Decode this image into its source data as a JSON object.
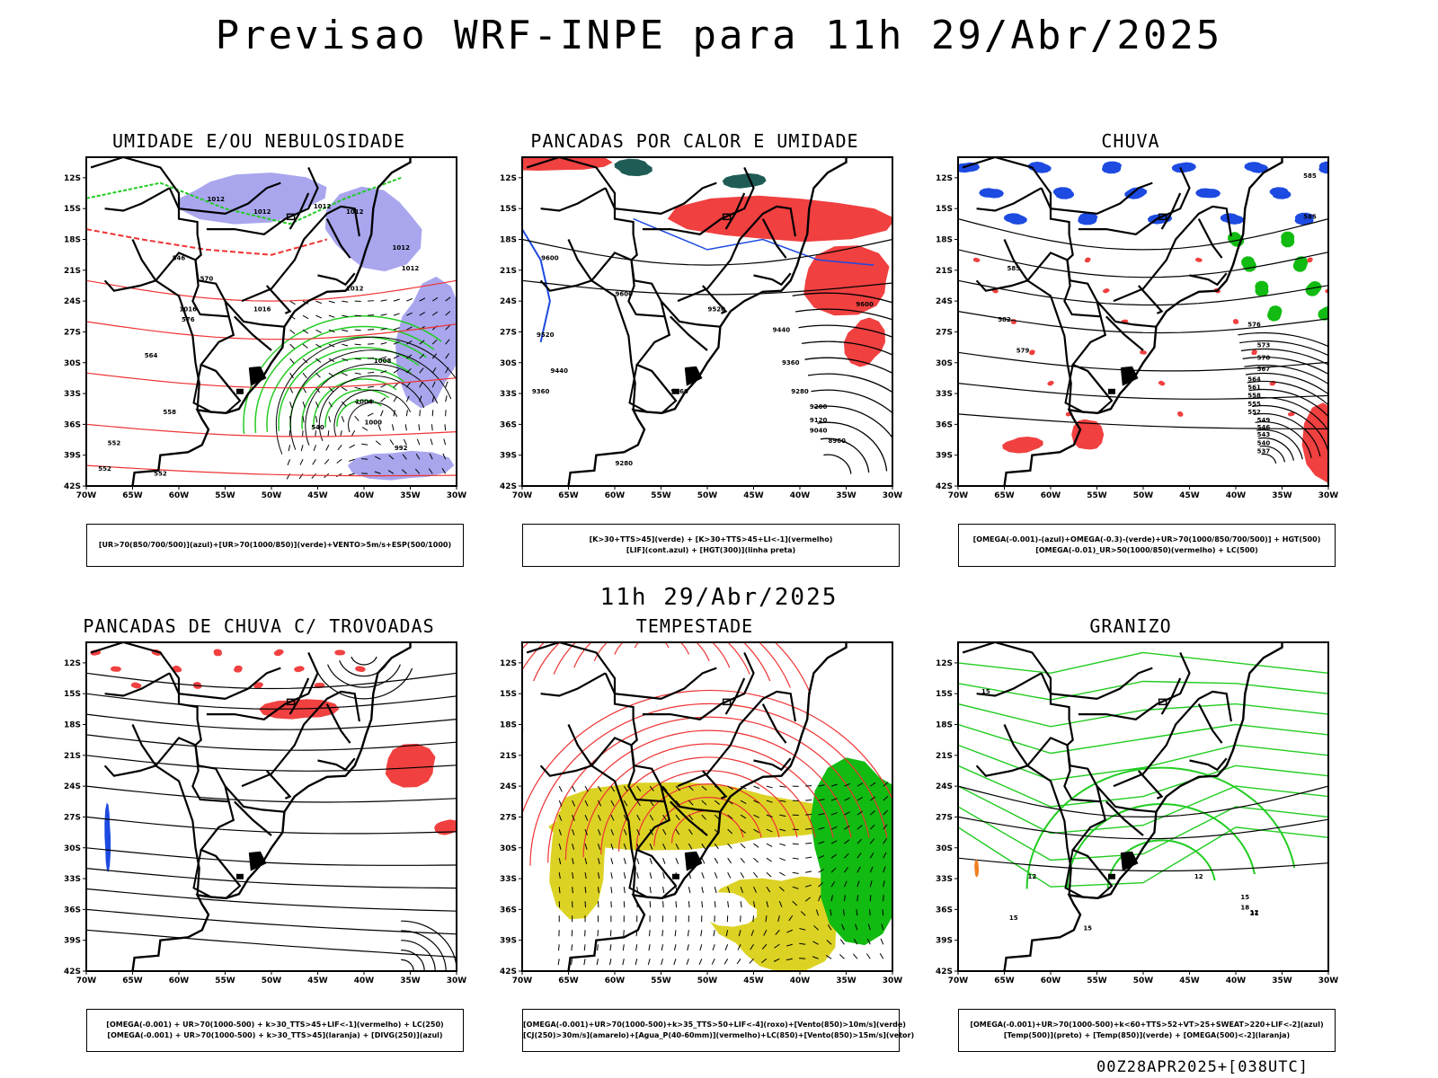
{
  "header": {
    "title": "Previsao WRF-INPE  para 11h 29/Abr/2025",
    "mid_date": "11h 29/Abr/2025",
    "footer": "00Z28APR2025+[038UTC]"
  },
  "axes": {
    "lat_ticks": [
      "12S",
      "15S",
      "18S",
      "21S",
      "24S",
      "27S",
      "30S",
      "33S",
      "36S",
      "39S",
      "42S"
    ],
    "lon_ticks": [
      "70W",
      "65W",
      "60W",
      "55W",
      "50W",
      "45W",
      "40W",
      "35W",
      "30W"
    ]
  },
  "colors": {
    "moist_blue": "#a9a6ee",
    "green_line": "#22cc22",
    "red_line": "#ee3333",
    "red_fill": "#f04040",
    "dark_teal": "#1f5c55",
    "blue_line": "#1d4ae0",
    "yellow_fill": "#dcd224",
    "green_fill": "#11bb11",
    "orange": "#f08020"
  },
  "panels": [
    {
      "title": "UMIDADE E/OU NEBULOSIDADE",
      "legend": [
        "[UR>70(850/700/500)](azul)+[UR>70(1000/850)](verde)+VENTO>5m/s+ESP(500/1000)"
      ],
      "contour_labels": [
        "1012",
        "1012",
        "1012",
        "1012",
        "1016",
        "1016",
        "1012",
        "1012",
        "1012",
        "1008",
        "1004",
        "1000",
        "992",
        "570",
        "576",
        "564",
        "558",
        "552",
        "546",
        "540",
        "552",
        "552"
      ]
    },
    {
      "title": "PANCADAS POR CALOR E UMIDADE",
      "legend": [
        "[K>30+TTS>45](verde) + [K>30+TTS>45+LI<-1](vermelho)",
        "[LIF](cont.azul) + [HGT(300)](linha preta)"
      ],
      "contour_labels": [
        "9600",
        "9600",
        "9600",
        "9520",
        "9520",
        "9440",
        "9440",
        "9360",
        "9360",
        "9280",
        "9200",
        "9120",
        "9040",
        "8960",
        "9280",
        "9360"
      ]
    },
    {
      "title": "CHUVA",
      "legend": [
        "[OMEGA(-0.001)-(azul)+OMEGA(-0.3)-(verde)+UR>70(1000/850/700/500)] + HGT(500)",
        "[OMEGA(-0.01)_UR>50(1000/850)(vermelho) + LC(500)"
      ],
      "contour_labels": [
        "585",
        "585",
        "585",
        "582",
        "579",
        "576",
        "573",
        "570",
        "567",
        "564",
        "561",
        "558",
        "555",
        "552",
        "549",
        "546",
        "543",
        "540",
        "537"
      ]
    },
    {
      "title": "PANCADAS DE CHUVA C/ TROVOADAS",
      "legend": [
        "[OMEGA(-0.001) + UR>70(1000-500) + k>30_TTS>45+LIF<-1](vermelho) + LC(250)",
        "[OMEGA(-0.001) + UR>70(1000-500) + k>30_TTS>45](laranja) + [DIVG(250)](azul)"
      ],
      "contour_labels": []
    },
    {
      "title": "TEMPESTADE",
      "legend": [
        "[OMEGA(-0.001)+UR>70(1000-500)+k>35_TTS>50+LIF<-4](roxo)+[Vento(850)>10m/s](verde)",
        "[CJ(250)>30m/s](amarelo)+[Agua_P(40-60mm)](vermelho)+LC(850)+[Vento(850)>15m/s](vetor)"
      ],
      "contour_labels": []
    },
    {
      "title": "GRANIZO",
      "legend": [
        "[OMEGA(-0.001)+UR>70(1000-500)+k<60+TTS>52+VT>25+SWEAT>220+LIF<-2](azul)",
        "[Temp(500)](preto) + [Temp(850)](verde) + [OMEGA(500)<-2](laranja)"
      ],
      "contour_labels": [
        "15",
        "12",
        "15",
        "15",
        "12",
        "12",
        "15",
        "18",
        "21"
      ]
    }
  ]
}
